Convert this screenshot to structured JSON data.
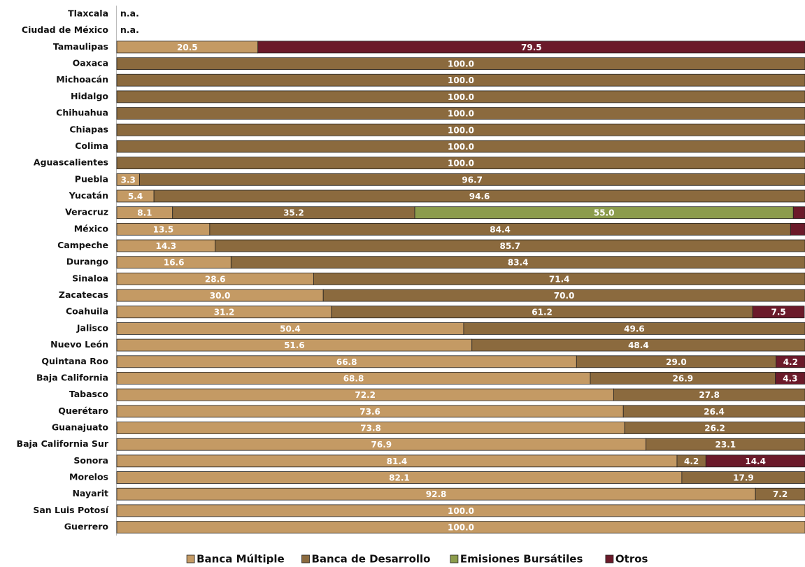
{
  "chart_data": {
    "type": "stacked-bar-horizontal",
    "categories": [
      "Tlaxcala",
      "Ciudad de México",
      "Tamaulipas",
      "Oaxaca",
      "Michoacán",
      "Hidalgo",
      "Chihuahua",
      "Chiapas",
      "Colima",
      "Aguascalientes",
      "Puebla",
      "Yucatán",
      "Veracruz",
      "México",
      "Campeche",
      "Durango",
      "Sinaloa",
      "Zacatecas",
      "Coahuila",
      "Jalisco",
      "Nuevo León",
      "Quintana Roo",
      "Baja California",
      "Tabasco",
      "Querétaro",
      "Guanajuato",
      "Baja California Sur",
      "Sonora",
      "Morelos",
      "Nayarit",
      "San Luis Potosí",
      "Guerrero"
    ],
    "missing_label": "n.a.",
    "xlim": [
      0,
      100
    ],
    "series": [
      {
        "name": "Banca Múltiple",
        "color": "#c49a64",
        "values": [
          null,
          null,
          20.5,
          null,
          null,
          null,
          null,
          null,
          null,
          null,
          3.3,
          5.4,
          8.1,
          13.5,
          14.3,
          16.6,
          28.6,
          30.0,
          31.2,
          50.4,
          51.6,
          66.8,
          68.8,
          72.2,
          73.6,
          73.8,
          76.9,
          81.4,
          82.1,
          92.8,
          100,
          100
        ],
        "value_labels": [
          null,
          null,
          "20.5",
          null,
          null,
          null,
          null,
          null,
          null,
          null,
          "3.3",
          "5.4",
          "8.1",
          "13.5",
          "14.3",
          "16.6",
          "28.6",
          "30.0",
          "31.2",
          "50.4",
          "51.6",
          "66.8",
          "68.8",
          "72.2",
          "73.6",
          "73.8",
          "76.9",
          "81.4",
          "82.1",
          "92.8",
          "100.0",
          "100.0"
        ]
      },
      {
        "name": "Banca de Desarrollo",
        "color": "#8b6a3e",
        "values": [
          null,
          null,
          null,
          100,
          100,
          100,
          100,
          100,
          100,
          100,
          96.7,
          94.6,
          35.2,
          84.4,
          85.7,
          83.4,
          71.4,
          70.0,
          61.2,
          49.6,
          48.4,
          29.0,
          26.9,
          27.8,
          26.4,
          26.2,
          23.1,
          4.2,
          17.9,
          7.2,
          null,
          null
        ],
        "value_labels": [
          null,
          null,
          null,
          "100.0",
          "100.0",
          "100.0",
          "100.0",
          "100.0",
          "100.0",
          "100.0",
          "96.7",
          "94.6",
          "35.2",
          "84.4",
          "85.7",
          "83.4",
          "71.4",
          "70.0",
          "61.2",
          "49.6",
          "48.4",
          "29.0",
          "26.9",
          "27.8",
          "26.4",
          "26.2",
          "23.1",
          "4.2",
          "17.9",
          "7.2",
          null,
          null
        ]
      },
      {
        "name": "Emisiones Bursátiles",
        "color": "#8c9c4c",
        "values": [
          null,
          null,
          null,
          null,
          null,
          null,
          null,
          null,
          null,
          null,
          null,
          null,
          55.0,
          null,
          null,
          null,
          null,
          null,
          null,
          null,
          null,
          null,
          null,
          null,
          null,
          null,
          null,
          null,
          null,
          null,
          null,
          null
        ],
        "value_labels": [
          null,
          null,
          null,
          null,
          null,
          null,
          null,
          null,
          null,
          null,
          null,
          null,
          "55.0",
          null,
          null,
          null,
          null,
          null,
          null,
          null,
          null,
          null,
          null,
          null,
          null,
          null,
          null,
          null,
          null,
          null,
          null,
          null
        ]
      },
      {
        "name": "Otros",
        "color": "#6b1a2a",
        "values": [
          null,
          null,
          79.5,
          null,
          null,
          null,
          null,
          null,
          null,
          null,
          null,
          null,
          1.7,
          2.1,
          null,
          null,
          null,
          null,
          7.5,
          null,
          null,
          4.2,
          4.3,
          null,
          null,
          null,
          null,
          14.4,
          null,
          null,
          null,
          null
        ],
        "value_labels": [
          null,
          null,
          "79.5",
          null,
          null,
          null,
          null,
          null,
          null,
          null,
          null,
          null,
          null,
          null,
          null,
          null,
          null,
          null,
          "7.5",
          null,
          null,
          "4.2",
          "4.3",
          null,
          null,
          null,
          null,
          "14.4",
          null,
          null,
          null,
          null
        ]
      }
    ]
  }
}
